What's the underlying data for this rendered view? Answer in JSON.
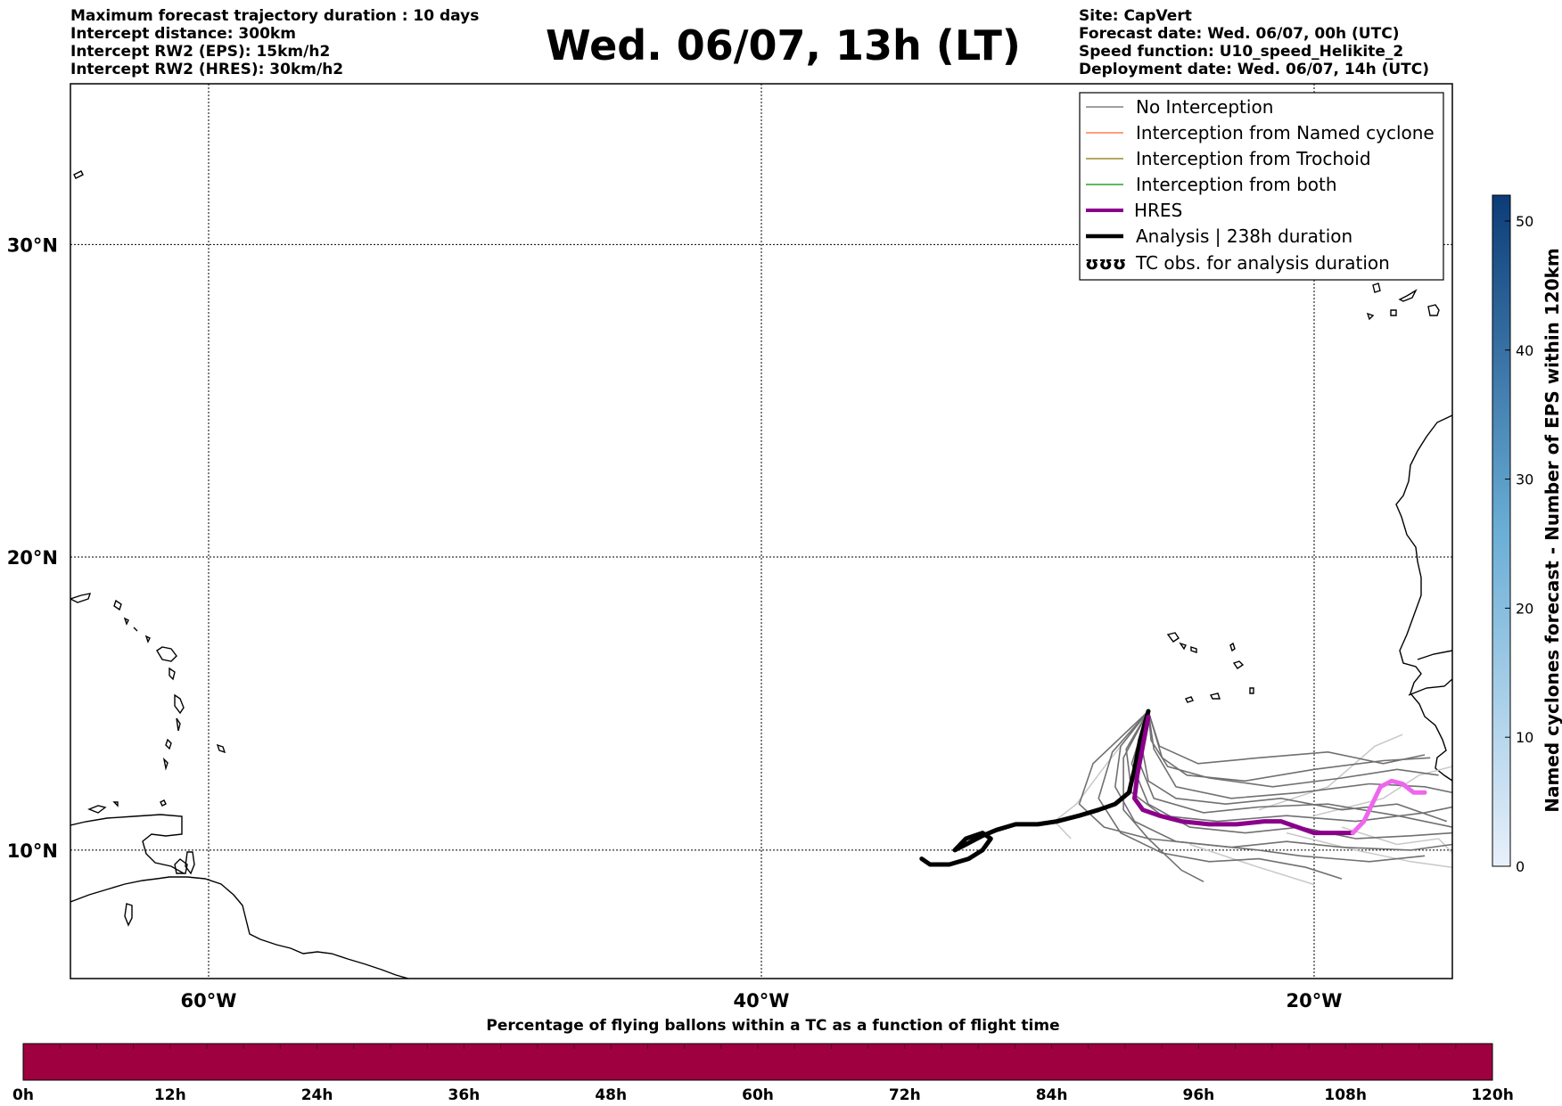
{
  "header_left": [
    "Maximum forecast trajectory duration : 10 days",
    "Intercept distance: 300km",
    "Intercept RW2 (EPS):  15km/h2",
    "Intercept RW2 (HRES): 30km/h2"
  ],
  "title": "Wed. 06/07, 13h (LT)",
  "header_right": [
    "Site: CapVert",
    "Forecast date: Wed. 06/07, 00h (UTC)",
    "Speed function: U10_speed_Helikite_2",
    "Deployment date: Wed. 06/07, 14h (UTC)"
  ],
  "map": {
    "lon_range": [
      -65,
      -15
    ],
    "lat_range": [
      5.5,
      34.8
    ],
    "lat_ticks": [
      {
        "value": 30,
        "label": "30°N"
      },
      {
        "value": 20,
        "label": "20°N"
      },
      {
        "value": 10,
        "label": "10°N"
      }
    ],
    "lon_ticks": [
      {
        "value": -60,
        "label": "60°W"
      },
      {
        "value": -40,
        "label": "40°W"
      },
      {
        "value": -20,
        "label": "20°W"
      }
    ],
    "grid": true
  },
  "legend": {
    "placement": "top-right",
    "items": [
      {
        "label": "No Interception",
        "color": "#808080",
        "style": "thin"
      },
      {
        "label": "Interception from Named cyclone",
        "color": "#ff7f50",
        "style": "thin"
      },
      {
        "label": "Interception from Trochoid",
        "color": "#9c8c30",
        "style": "thin"
      },
      {
        "label": "Interception from both",
        "color": "#2ca02c",
        "style": "thin"
      },
      {
        "label": "HRES",
        "color": "#8b008b",
        "style": "thick"
      },
      {
        "label": "Analysis | 238h duration",
        "color": "#000000",
        "style": "thick"
      },
      {
        "label": "TC obs. for analysis duration",
        "color": "#000000",
        "style": "symbol",
        "symbol": "ʊʊʊ"
      }
    ]
  },
  "cyclone_colorbar": {
    "label": "Named cyclones forecast - Number of EPS within 120km",
    "range": [
      0,
      52
    ],
    "ticks": [
      "0",
      "10",
      "20",
      "30",
      "40",
      "50"
    ],
    "tick_values": [
      0,
      10,
      20,
      30,
      40,
      50
    ],
    "color_low": "#e8f0fb",
    "color_high": "#0c3c78"
  },
  "time_bar": {
    "title": "Percentage of flying ballons within a TC as a function of flight time",
    "ticks": [
      "0h",
      "12h",
      "24h",
      "36h",
      "48h",
      "60h",
      "72h",
      "84h",
      "96h",
      "108h",
      "120h"
    ],
    "fill_color": "#9e0040"
  },
  "tracks": {
    "analysis": [
      [
        -26.0,
        14.8
      ],
      [
        -26.3,
        13.8
      ],
      [
        -26.5,
        12.8
      ],
      [
        -26.7,
        12.0
      ],
      [
        -27.2,
        11.6
      ],
      [
        -27.8,
        11.4
      ],
      [
        -28.5,
        11.2
      ],
      [
        -29.3,
        11.0
      ],
      [
        -30.0,
        10.9
      ],
      [
        -30.8,
        10.9
      ],
      [
        -31.5,
        10.7
      ],
      [
        -32.0,
        10.5
      ],
      [
        -32.6,
        10.2
      ],
      [
        -33.0,
        10.0
      ],
      [
        -32.6,
        10.4
      ],
      [
        -32.0,
        10.6
      ],
      [
        -31.7,
        10.4
      ],
      [
        -32.0,
        10.0
      ],
      [
        -32.5,
        9.7
      ],
      [
        -33.2,
        9.5
      ],
      [
        -33.9,
        9.5
      ],
      [
        -34.2,
        9.7
      ]
    ],
    "hres": [
      [
        -26.0,
        14.6
      ],
      [
        -26.2,
        13.6
      ],
      [
        -26.4,
        12.6
      ],
      [
        -26.5,
        11.8
      ],
      [
        -26.2,
        11.4
      ],
      [
        -25.6,
        11.2
      ],
      [
        -24.8,
        11.0
      ],
      [
        -23.8,
        10.9
      ],
      [
        -22.8,
        10.9
      ],
      [
        -21.8,
        11.0
      ],
      [
        -21.2,
        11.0
      ],
      [
        -20.6,
        10.8
      ],
      [
        -20.0,
        10.6
      ],
      [
        -19.2,
        10.6
      ],
      [
        -18.6,
        10.6
      ]
    ],
    "hres_pink": [
      [
        -18.6,
        10.6
      ],
      [
        -18.2,
        11.0
      ],
      [
        -18.0,
        11.4
      ],
      [
        -17.8,
        11.8
      ],
      [
        -17.6,
        12.2
      ],
      [
        -17.2,
        12.4
      ],
      [
        -16.8,
        12.3
      ],
      [
        -16.4,
        12.0
      ],
      [
        -16.0,
        12.0
      ]
    ],
    "ensemble_dark": [
      [
        [
          -26.0,
          14.8
        ],
        [
          -26.8,
          13.5
        ],
        [
          -26.6,
          12.0
        ],
        [
          -25.5,
          11.2
        ],
        [
          -23.5,
          11.0
        ],
        [
          -21.0,
          11.2
        ],
        [
          -18.5,
          11.0
        ],
        [
          -16.0,
          11.3
        ],
        [
          -15.0,
          11.5
        ]
      ],
      [
        [
          -26.0,
          14.8
        ],
        [
          -25.8,
          13.5
        ],
        [
          -25.0,
          12.2
        ],
        [
          -23.0,
          11.8
        ],
        [
          -20.5,
          12.0
        ],
        [
          -18.0,
          12.3
        ],
        [
          -16.0,
          12.2
        ],
        [
          -15.0,
          12.0
        ]
      ],
      [
        [
          -26.0,
          14.8
        ],
        [
          -26.4,
          13.2
        ],
        [
          -25.8,
          11.8
        ],
        [
          -24.0,
          11.3
        ],
        [
          -22.0,
          11.5
        ],
        [
          -19.5,
          11.6
        ],
        [
          -17.0,
          11.2
        ],
        [
          -15.0,
          10.8
        ]
      ],
      [
        [
          -26.0,
          14.8
        ],
        [
          -27.0,
          13.6
        ],
        [
          -27.2,
          12.2
        ],
        [
          -26.5,
          11.0
        ],
        [
          -25.0,
          10.3
        ],
        [
          -23.0,
          10.1
        ],
        [
          -21.0,
          10.3
        ],
        [
          -19.0,
          10.1
        ],
        [
          -16.5,
          10.0
        ],
        [
          -15.0,
          10.2
        ]
      ],
      [
        [
          -26.0,
          14.8
        ],
        [
          -25.5,
          13.2
        ],
        [
          -24.6,
          12.6
        ],
        [
          -22.5,
          12.4
        ],
        [
          -20.0,
          12.8
        ],
        [
          -17.5,
          13.1
        ],
        [
          -15.8,
          13.2
        ]
      ],
      [
        [
          -26.0,
          14.8
        ],
        [
          -26.6,
          13.0
        ],
        [
          -26.0,
          11.6
        ],
        [
          -24.5,
          10.8
        ],
        [
          -22.5,
          10.6
        ],
        [
          -20.5,
          10.8
        ],
        [
          -18.5,
          10.4
        ],
        [
          -16.5,
          10.5
        ],
        [
          -15.0,
          10.6
        ]
      ],
      [
        [
          -26.0,
          14.8
        ],
        [
          -27.3,
          13.4
        ],
        [
          -27.8,
          11.8
        ],
        [
          -27.0,
          10.6
        ],
        [
          -25.5,
          9.9
        ],
        [
          -23.8,
          9.6
        ],
        [
          -22.0,
          9.7
        ],
        [
          -20.3,
          9.4
        ],
        [
          -19.0,
          9.0
        ]
      ],
      [
        [
          -26.0,
          14.8
        ],
        [
          -25.9,
          13.8
        ],
        [
          -25.3,
          12.9
        ],
        [
          -23.8,
          12.5
        ],
        [
          -21.5,
          12.2
        ],
        [
          -19.0,
          12.5
        ],
        [
          -17.0,
          12.8
        ],
        [
          -15.5,
          12.6
        ]
      ],
      [
        [
          -26.0,
          14.8
        ],
        [
          -26.2,
          13.4
        ],
        [
          -26.0,
          12.4
        ],
        [
          -25.0,
          11.8
        ],
        [
          -23.2,
          11.6
        ],
        [
          -21.2,
          11.8
        ],
        [
          -19.0,
          11.4
        ],
        [
          -17.0,
          11.6
        ],
        [
          -15.2,
          11.0
        ]
      ],
      [
        [
          -26.0,
          14.8
        ],
        [
          -26.9,
          13.2
        ],
        [
          -26.9,
          11.4
        ],
        [
          -26.0,
          10.4
        ],
        [
          -24.0,
          10.2
        ],
        [
          -22.0,
          10.0
        ],
        [
          -20.5,
          9.8
        ],
        [
          -18.0,
          9.6
        ],
        [
          -16.0,
          9.8
        ]
      ],
      [
        [
          -26.0,
          14.8
        ],
        [
          -28.0,
          13.0
        ],
        [
          -28.5,
          11.6
        ],
        [
          -27.6,
          10.8
        ],
        [
          -26.0,
          10.4
        ],
        [
          -24.8,
          9.3
        ],
        [
          -24.0,
          8.9
        ]
      ],
      [
        [
          -26.0,
          14.8
        ],
        [
          -25.6,
          13.6
        ],
        [
          -24.2,
          13.0
        ],
        [
          -22.0,
          13.2
        ],
        [
          -19.5,
          13.4
        ],
        [
          -17.5,
          13.0
        ],
        [
          -16.0,
          13.3
        ]
      ]
    ],
    "ensemble_light": [
      [
        [
          -26.0,
          14.8
        ],
        [
          -27.5,
          13.0
        ],
        [
          -28.6,
          11.6
        ],
        [
          -29.4,
          11.0
        ],
        [
          -28.8,
          10.4
        ]
      ],
      [
        [
          -22.0,
          11.4
        ],
        [
          -19.5,
          12.2
        ],
        [
          -17.8,
          13.6
        ],
        [
          -16.8,
          14.0
        ]
      ],
      [
        [
          -21.0,
          10.6
        ],
        [
          -18.5,
          10.0
        ],
        [
          -16.5,
          9.6
        ],
        [
          -15.0,
          9.4
        ]
      ],
      [
        [
          -20.0,
          11.2
        ],
        [
          -17.5,
          11.8
        ],
        [
          -16.2,
          12.6
        ],
        [
          -15.0,
          12.9
        ]
      ],
      [
        [
          -24.5,
          10.2
        ],
        [
          -22.0,
          9.4
        ],
        [
          -20.0,
          8.8
        ]
      ],
      [
        [
          -19.0,
          10.8
        ],
        [
          -17.0,
          10.2
        ],
        [
          -15.5,
          10.4
        ],
        [
          -15.0,
          9.9
        ]
      ]
    ]
  }
}
